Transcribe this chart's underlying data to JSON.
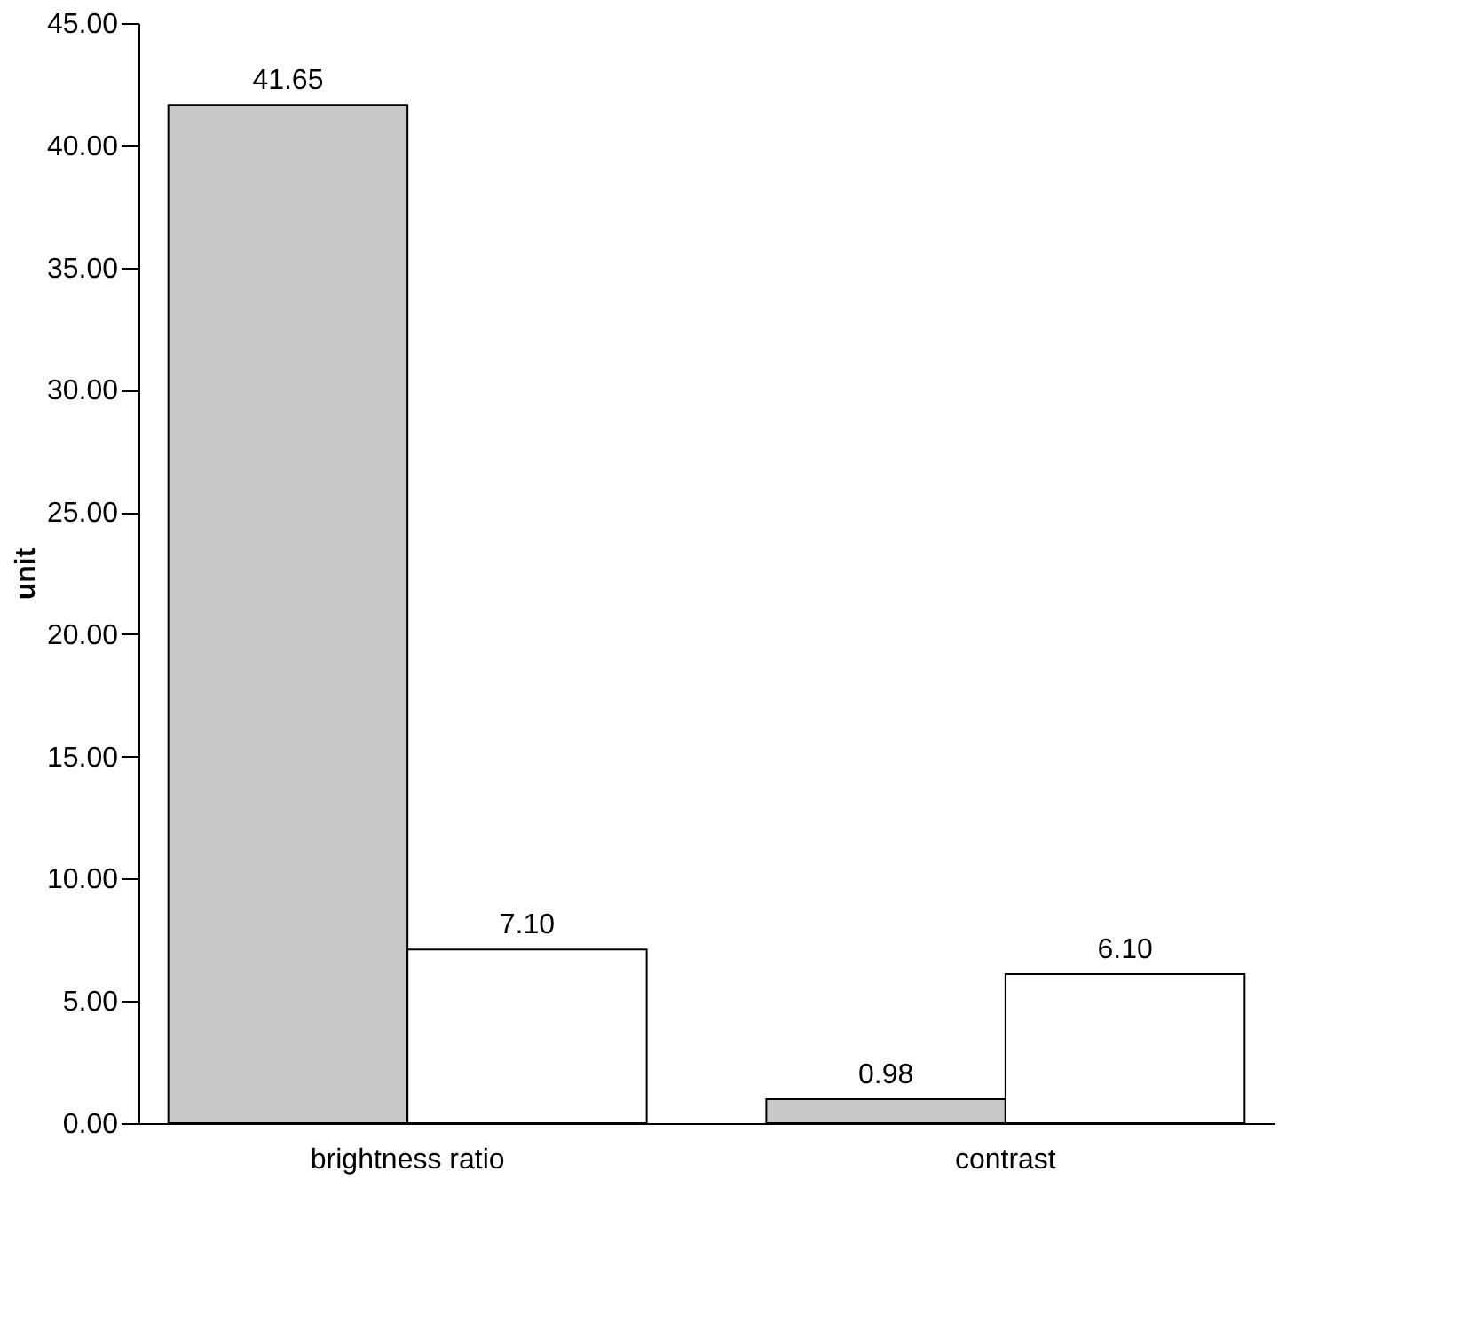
{
  "chart_data": {
    "type": "bar",
    "ylabel": "unit",
    "categories": [
      "brightness ratio",
      "contrast"
    ],
    "series": [
      {
        "color": "#c8c8c8",
        "values": [
          41.65,
          0.98
        ],
        "value_labels": [
          "41.65",
          "0.98"
        ]
      },
      {
        "color": "#ffffff",
        "values": [
          7.1,
          6.1
        ],
        "value_labels": [
          "7.10",
          "6.10"
        ]
      }
    ],
    "ylim": [
      0,
      45
    ],
    "yticks": [
      {
        "value": 0,
        "label": "0.00"
      },
      {
        "value": 5,
        "label": "5.00"
      },
      {
        "value": 10,
        "label": "10.00"
      },
      {
        "value": 15,
        "label": "15.00"
      },
      {
        "value": 20,
        "label": "20.00"
      },
      {
        "value": 25,
        "label": "25.00"
      },
      {
        "value": 30,
        "label": "30.00"
      },
      {
        "value": 35,
        "label": "35.00"
      },
      {
        "value": 40,
        "label": "40.00"
      },
      {
        "value": 45,
        "label": "45.00"
      }
    ],
    "grid": false,
    "legend": false
  }
}
